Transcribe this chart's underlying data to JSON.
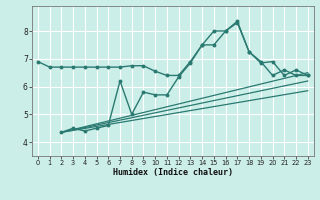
{
  "title": "",
  "xlabel": "Humidex (Indice chaleur)",
  "bg_color": "#cceee8",
  "line_color": "#2a7a72",
  "grid_color": "#ffffff",
  "xlim": [
    -0.5,
    23.5
  ],
  "ylim": [
    3.5,
    8.9
  ],
  "yticks": [
    4,
    5,
    6,
    7,
    8
  ],
  "xticks": [
    0,
    1,
    2,
    3,
    4,
    5,
    6,
    7,
    8,
    9,
    10,
    11,
    12,
    13,
    14,
    15,
    16,
    17,
    18,
    19,
    20,
    21,
    22,
    23
  ],
  "series1_x": [
    0,
    1,
    2,
    3,
    4,
    5,
    6,
    7,
    8,
    9,
    10,
    11,
    12,
    13,
    14,
    15,
    16,
    17,
    18,
    19,
    20,
    21,
    22,
    23
  ],
  "series1_y": [
    6.9,
    6.7,
    6.7,
    6.7,
    6.7,
    6.7,
    6.7,
    6.7,
    6.75,
    6.75,
    6.55,
    6.4,
    6.4,
    6.9,
    7.5,
    8.0,
    8.0,
    8.35,
    7.25,
    6.9,
    6.4,
    6.6,
    6.4,
    6.4
  ],
  "series2_x": [
    2,
    3,
    4,
    5,
    6,
    7,
    8,
    9,
    10,
    11,
    12,
    13,
    14,
    15,
    16,
    17,
    18,
    19,
    20,
    21,
    22,
    23
  ],
  "series2_y": [
    4.35,
    4.5,
    4.4,
    4.5,
    4.6,
    6.2,
    5.0,
    5.8,
    5.7,
    5.7,
    6.35,
    6.85,
    7.5,
    7.5,
    8.0,
    8.3,
    7.25,
    6.85,
    6.9,
    6.4,
    6.6,
    6.4
  ],
  "tline1_x": [
    2,
    23
  ],
  "tline1_y": [
    4.35,
    6.5
  ],
  "tline2_x": [
    2,
    23
  ],
  "tline2_y": [
    4.35,
    6.2
  ],
  "tline3_x": [
    2,
    23
  ],
  "tline3_y": [
    4.35,
    5.85
  ]
}
